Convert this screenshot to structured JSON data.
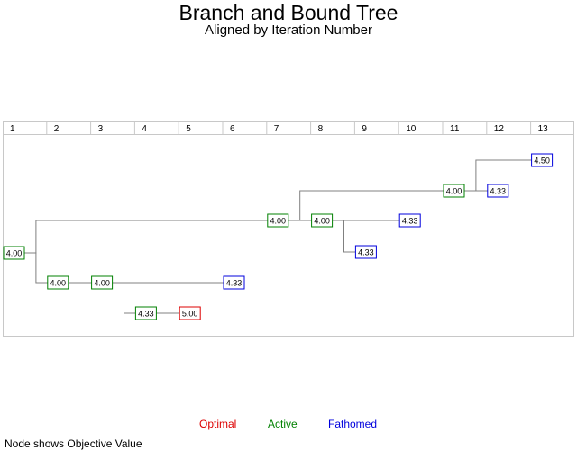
{
  "title": "Branch and Bound Tree",
  "subtitle": "Aligned by Iteration Number",
  "iterations": [
    "1",
    "2",
    "3",
    "4",
    "5",
    "6",
    "7",
    "8",
    "9",
    "10",
    "11",
    "12",
    "13"
  ],
  "colors": {
    "optimal": "#dd0000",
    "active": "#008000",
    "fathomed": "#0000dd",
    "edge": "#808080"
  },
  "legend": {
    "optimal": "Optimal",
    "active": "Active",
    "fathomed": "Fathomed"
  },
  "footnote": "Node shows Objective Value",
  "nodes": [
    {
      "id": "n1",
      "iteration": 1,
      "value": "4.00",
      "status": "active"
    },
    {
      "id": "n2",
      "iteration": 2,
      "value": "4.00",
      "status": "active"
    },
    {
      "id": "n3",
      "iteration": 3,
      "value": "4.00",
      "status": "active"
    },
    {
      "id": "n4",
      "iteration": 4,
      "value": "4.33",
      "status": "active"
    },
    {
      "id": "n5",
      "iteration": 5,
      "value": "5.00",
      "status": "optimal"
    },
    {
      "id": "n6",
      "iteration": 6,
      "value": "4.33",
      "status": "fathomed"
    },
    {
      "id": "n7",
      "iteration": 7,
      "value": "4.00",
      "status": "active"
    },
    {
      "id": "n8",
      "iteration": 8,
      "value": "4.00",
      "status": "active"
    },
    {
      "id": "n9",
      "iteration": 9,
      "value": "4.33",
      "status": "fathomed"
    },
    {
      "id": "n10",
      "iteration": 10,
      "value": "4.33",
      "status": "fathomed"
    },
    {
      "id": "n11",
      "iteration": 11,
      "value": "4.00",
      "status": "active"
    },
    {
      "id": "n12",
      "iteration": 12,
      "value": "4.33",
      "status": "fathomed"
    },
    {
      "id": "n13",
      "iteration": 13,
      "value": "4.50",
      "status": "fathomed"
    }
  ],
  "edges": [
    [
      "n1",
      "n2"
    ],
    [
      "n1",
      "n7"
    ],
    [
      "n2",
      "n3"
    ],
    [
      "n3",
      "n4"
    ],
    [
      "n3",
      "n6"
    ],
    [
      "n4",
      "n5"
    ],
    [
      "n7",
      "n8"
    ],
    [
      "n7",
      "n11"
    ],
    [
      "n8",
      "n9"
    ],
    [
      "n8",
      "n10"
    ],
    [
      "n11",
      "n12"
    ],
    [
      "n11",
      "n13"
    ]
  ]
}
